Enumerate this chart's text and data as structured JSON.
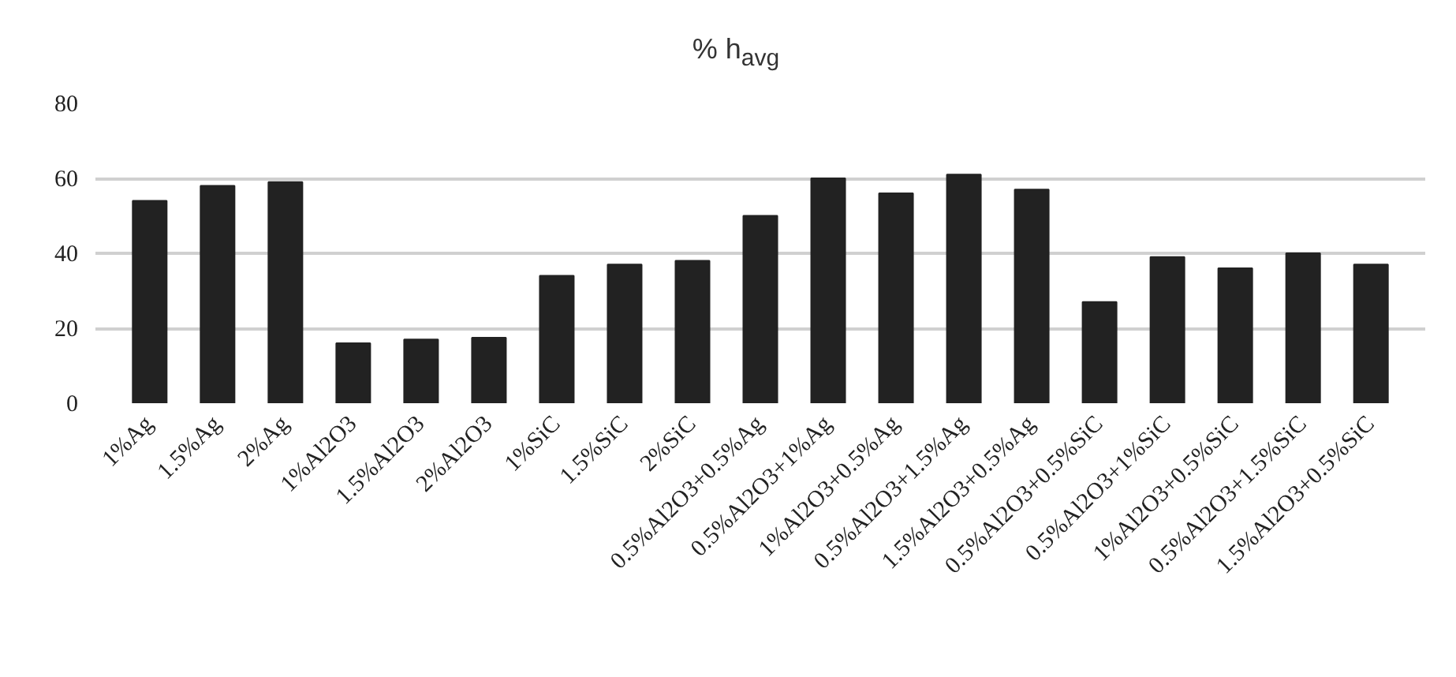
{
  "chart_data": {
    "type": "bar",
    "title": "% h$_{avg}$",
    "categories": [
      "1%Ag",
      "1.5%Ag",
      "2%Ag",
      "1%Al2O3",
      "1.5%Al2O3",
      "2%Al2O3",
      "1%SiC",
      "1.5%SiC",
      "2%SiC",
      "0.5%Al2O3+0.5%Ag",
      "0.5%Al2O3+1%Ag",
      "1%Al2O3+0.5%Ag",
      "0.5%Al2O3+1.5%Ag",
      "1.5%Al2O3+0.5%Ag",
      "0.5%Al2O3+0.5%SiC",
      "0.5%Al2O3+1%SiC",
      "1%Al2O3+0.5%SiC",
      "0.5%Al2O3+1.5%SiC",
      "1.5%Al2O3+0.5%SiC"
    ],
    "values": [
      54,
      58,
      59,
      16,
      17,
      17.5,
      34,
      37,
      38,
      50,
      60,
      56,
      61,
      57,
      27,
      39,
      36,
      40,
      37
    ],
    "color": "#222222",
    "ylim": [
      0,
      80
    ],
    "yticks": [
      0,
      20,
      40,
      60,
      80
    ],
    "grid": "y"
  }
}
